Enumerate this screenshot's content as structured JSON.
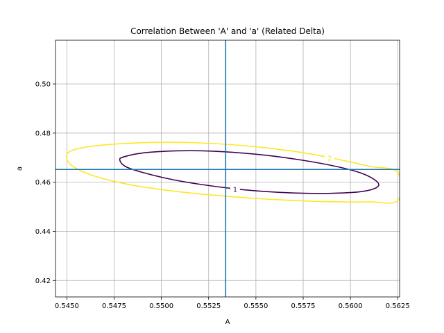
{
  "chart_data": {
    "type": "contour",
    "title": "Correlation Between 'A' and 'a' (Related Delta)",
    "xlabel": "A",
    "ylabel": "a",
    "xlim": [
      0.5444,
      0.5626
    ],
    "ylim": [
      0.4133,
      0.5178
    ],
    "xticks": [
      0.545,
      0.5475,
      0.55,
      0.5525,
      0.555,
      0.5575,
      0.56,
      0.5625
    ],
    "xtick_labels": [
      "0.5450",
      "0.5475",
      "0.5500",
      "0.5525",
      "0.5550",
      "0.5575",
      "0.5600",
      "0.5625"
    ],
    "yticks": [
      0.42,
      0.44,
      0.46,
      0.48,
      0.5
    ],
    "ytick_labels": [
      "0.42",
      "0.44",
      "0.46",
      "0.48",
      "0.50"
    ],
    "grid": true,
    "reference_lines": {
      "x": 0.5534,
      "y": 0.4652,
      "color": "#1f77b4"
    },
    "contours": [
      {
        "level_label": "1",
        "color": "#440154",
        "center": [
          0.55465,
          0.4642
        ],
        "label_at": [
          0.5539,
          0.4572
        ],
        "points": [
          [
            0.5478,
            0.469
          ],
          [
            0.548,
            0.4703
          ],
          [
            0.549,
            0.4719
          ],
          [
            0.5505,
            0.4727
          ],
          [
            0.552,
            0.4728
          ],
          [
            0.5535,
            0.4723
          ],
          [
            0.5555,
            0.471
          ],
          [
            0.5575,
            0.4689
          ],
          [
            0.5592,
            0.4665
          ],
          [
            0.5605,
            0.4639
          ],
          [
            0.5612,
            0.4614
          ],
          [
            0.5615,
            0.459
          ],
          [
            0.5612,
            0.4572
          ],
          [
            0.5605,
            0.4561
          ],
          [
            0.5595,
            0.4556
          ],
          [
            0.5585,
            0.4554
          ],
          [
            0.557,
            0.4556
          ],
          [
            0.5555,
            0.4562
          ],
          [
            0.554,
            0.4572
          ],
          [
            0.552,
            0.4592
          ],
          [
            0.5505,
            0.4612
          ],
          [
            0.549,
            0.464
          ],
          [
            0.5481,
            0.4664
          ],
          [
            0.5478,
            0.469
          ]
        ]
      },
      {
        "level_label": "2",
        "color": "#fde725",
        "center": [
          0.55375,
          0.4643
        ],
        "label_at": [
          0.5589,
          0.4699
        ],
        "points": [
          [
            0.545,
            0.4712
          ],
          [
            0.5455,
            0.4735
          ],
          [
            0.547,
            0.4752
          ],
          [
            0.5495,
            0.4762
          ],
          [
            0.552,
            0.476
          ],
          [
            0.5545,
            0.4748
          ],
          [
            0.557,
            0.4726
          ],
          [
            0.559,
            0.4699
          ],
          [
            0.561,
            0.4665
          ],
          [
            0.5625,
            0.464
          ],
          [
            0.5625,
            0.4525
          ],
          [
            0.561,
            0.452
          ],
          [
            0.5595,
            0.452
          ],
          [
            0.5575,
            0.4524
          ],
          [
            0.555,
            0.4534
          ],
          [
            0.5525,
            0.4549
          ],
          [
            0.55,
            0.457
          ],
          [
            0.548,
            0.4595
          ],
          [
            0.5462,
            0.4632
          ],
          [
            0.5452,
            0.4672
          ],
          [
            0.545,
            0.4712
          ]
        ]
      }
    ]
  }
}
